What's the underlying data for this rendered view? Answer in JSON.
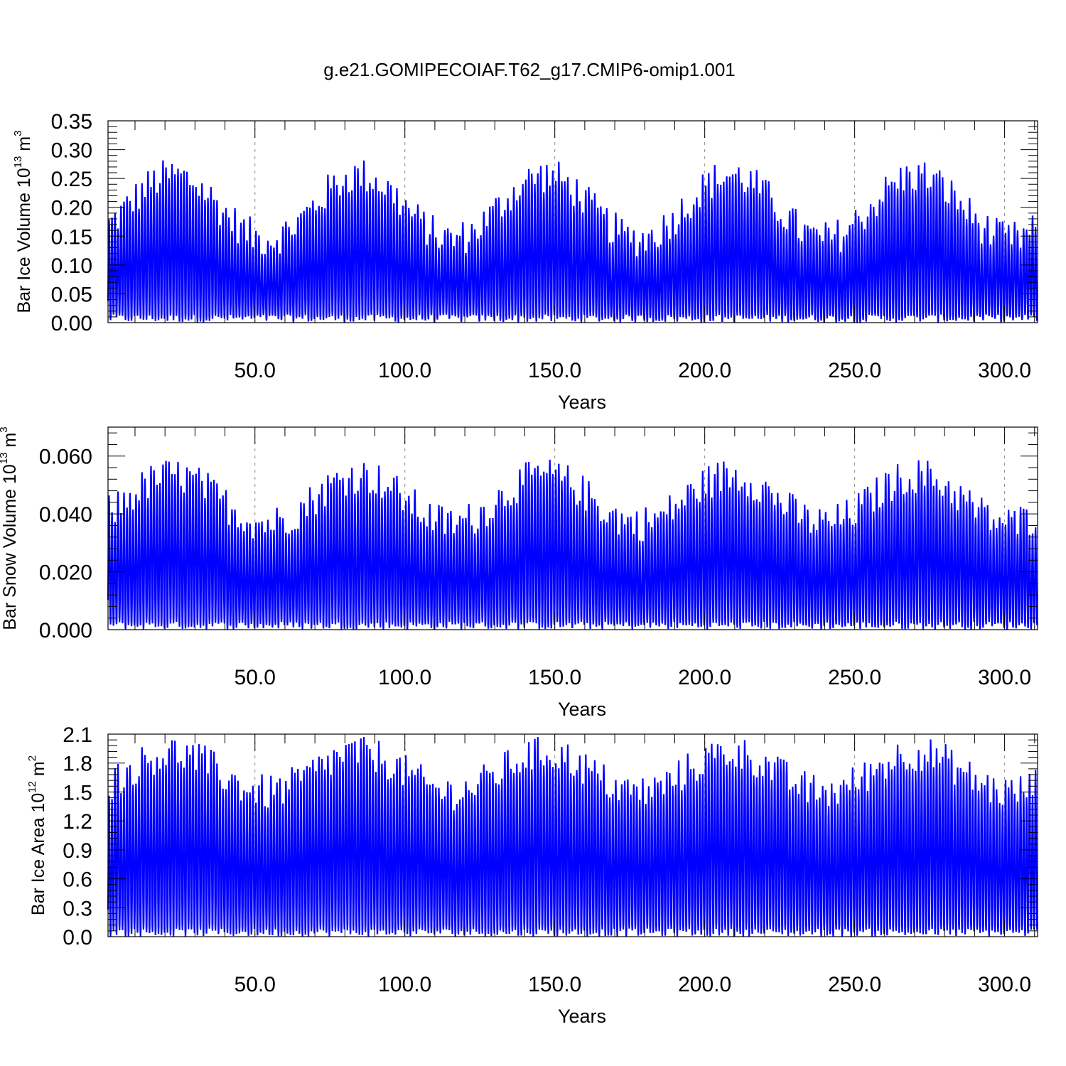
{
  "title": "g.e21.GOMIPECOIAF.T62_g17.CMIP6-omip1.001",
  "line_color": "#0000ff",
  "chart_data": [
    {
      "type": "line",
      "ylabel": {
        "base": "Bar Ice Volume 10",
        "exp": "13",
        "unit": " m",
        "unit_exp": "3"
      },
      "xlabel": "Years",
      "xlim": [
        1,
        311
      ],
      "ylim": [
        0,
        0.35
      ],
      "x_ticks": [
        50,
        100,
        150,
        200,
        250,
        300
      ],
      "x_tick_labels": [
        "50.0",
        "100.0",
        "150.0",
        "200.0",
        "250.0",
        "300.0"
      ],
      "y_ticks": [
        0,
        0.05,
        0.1,
        0.15,
        0.2,
        0.25,
        0.3,
        0.35
      ],
      "y_tick_labels": [
        "0.00",
        "0.05",
        "0.10",
        "0.15",
        "0.20",
        "0.25",
        "0.30",
        "0.35"
      ],
      "series": [
        {
          "freq": "monthly",
          "annual_peaks_start": 0.245,
          "min": 0.0,
          "max": 0.3,
          "typical_peak": 0.2
        }
      ]
    },
    {
      "type": "line",
      "ylabel": {
        "base": "Bar Snow Volume 10",
        "exp": "13",
        "unit": " m",
        "unit_exp": "3"
      },
      "xlabel": "Years",
      "xlim": [
        1,
        311
      ],
      "ylim": [
        0,
        0.07
      ],
      "x_ticks": [
        50,
        100,
        150,
        200,
        250,
        300
      ],
      "x_tick_labels": [
        "50.0",
        "100.0",
        "150.0",
        "200.0",
        "250.0",
        "300.0"
      ],
      "y_ticks": [
        0,
        0.02,
        0.04,
        0.06
      ],
      "y_tick_labels": [
        "0.000",
        "0.020",
        "0.040",
        "0.060"
      ],
      "series": [
        {
          "freq": "monthly",
          "min": 0.0,
          "max": 0.06,
          "typical_peak": 0.045
        }
      ]
    },
    {
      "type": "line",
      "ylabel": {
        "base": "Bar Ice Area 10",
        "exp": "12",
        "unit": " m",
        "unit_exp": "2"
      },
      "xlabel": "Years",
      "xlim": [
        1,
        311
      ],
      "ylim": [
        0,
        2.1
      ],
      "x_ticks": [
        50,
        100,
        150,
        200,
        250,
        300
      ],
      "x_tick_labels": [
        "50.0",
        "100.0",
        "150.0",
        "200.0",
        "250.0",
        "300.0"
      ],
      "y_ticks": [
        0,
        0.3,
        0.6,
        0.9,
        1.2,
        1.5,
        1.8,
        2.1
      ],
      "y_tick_labels": [
        "0.0",
        "0.3",
        "0.6",
        "0.9",
        "1.2",
        "1.5",
        "1.8",
        "2.1"
      ],
      "series": [
        {
          "freq": "monthly",
          "min": 0.0,
          "max": 2.07,
          "typical_peak": 1.7
        }
      ]
    }
  ]
}
